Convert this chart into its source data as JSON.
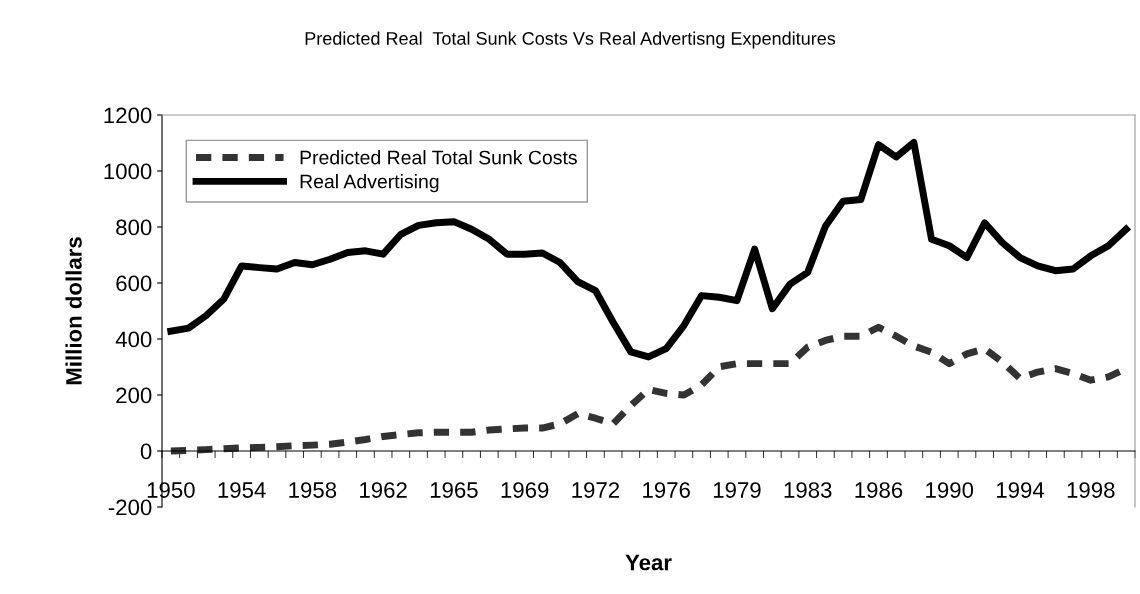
{
  "chart_data": {
    "type": "line",
    "title": "Predicted Real  Total Sunk Costs Vs Real Advertisng Expenditures",
    "xlabel": "Year",
    "ylabel": "Million dollars",
    "categories": [
      "1950",
      null,
      null,
      null,
      "1954",
      null,
      null,
      null,
      "1958",
      null,
      null,
      null,
      "1962",
      null,
      null,
      null,
      "1965",
      null,
      null,
      null,
      "1969",
      null,
      null,
      null,
      "1972",
      null,
      null,
      null,
      "1976",
      null,
      null,
      null,
      "1979",
      null,
      null,
      null,
      "1983",
      null,
      null,
      null,
      "1986",
      null,
      null,
      null,
      "1990",
      null,
      null,
      null,
      "1994",
      null,
      null,
      null,
      "1998",
      null,
      null
    ],
    "series": [
      {
        "name": "Predicted Real Total Sunk Costs",
        "color": "#333333",
        "line_style": "dashed",
        "values": [
          0,
          2,
          5,
          8,
          11,
          13,
          15,
          19,
          21,
          24,
          32,
          41,
          52,
          59,
          65,
          67,
          67,
          67,
          75,
          79,
          82,
          82,
          97,
          133,
          117,
          97,
          162,
          220,
          206,
          200,
          236,
          301,
          312,
          312,
          312,
          312,
          371,
          395,
          410,
          410,
          442,
          410,
          375,
          353,
          312,
          347,
          365,
          318,
          259,
          282,
          294,
          277,
          253,
          265,
          294
        ]
      },
      {
        "name": "Real Advertising",
        "color": "#000000",
        "line_style": "solid",
        "values": [
          428,
          439,
          484,
          543,
          661,
          655,
          650,
          673,
          665,
          685,
          709,
          715,
          703,
          774,
          806,
          815,
          819,
          792,
          756,
          703,
          703,
          707,
          673,
          605,
          573,
          460,
          354,
          336,
          366,
          448,
          555,
          549,
          537,
          721,
          508,
          596,
          638,
          803,
          892,
          898,
          1094,
          1050,
          1102,
          756,
          733,
          691,
          815,
          744,
          691,
          661,
          644,
          650,
          697,
          733,
          792
        ]
      }
    ],
    "ylim": [
      -200,
      1200
    ],
    "yticks": [
      -200,
      0,
      200,
      400,
      600,
      800,
      1000,
      1200
    ],
    "grid": false,
    "legend": "top left",
    "marker": "none"
  }
}
